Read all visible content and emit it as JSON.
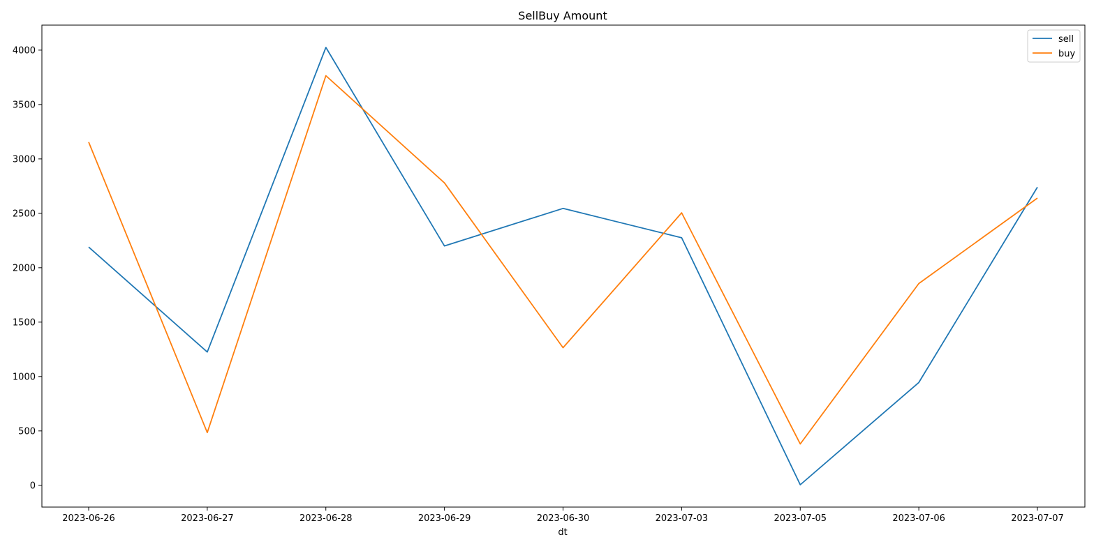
{
  "chart_data": {
    "type": "line",
    "title": "SellBuy Amount",
    "xlabel": "dt",
    "ylabel": "",
    "categories": [
      "2023-06-26",
      "2023-06-27",
      "2023-06-28",
      "2023-06-29",
      "2023-06-30",
      "2023-07-03",
      "2023-07-05",
      "2023-07-06",
      "2023-07-07"
    ],
    "series": [
      {
        "name": "sell",
        "color": "#1f77b4",
        "values": [
          2190,
          1225,
          4025,
          2200,
          2545,
          2275,
          5,
          945,
          2740
        ]
      },
      {
        "name": "buy",
        "color": "#ff7f0e",
        "values": [
          3155,
          485,
          3765,
          2780,
          1265,
          2505,
          380,
          1855,
          2640
        ]
      }
    ],
    "ylim": [
      -200,
      4230
    ],
    "yticks": [
      0,
      500,
      1000,
      1500,
      2000,
      2500,
      3000,
      3500,
      4000
    ],
    "ytick_labels": [
      "0",
      "500",
      "1000",
      "1500",
      "2000",
      "2500",
      "3000",
      "3500",
      "4000"
    ],
    "grid": false,
    "legend": "top-right"
  }
}
